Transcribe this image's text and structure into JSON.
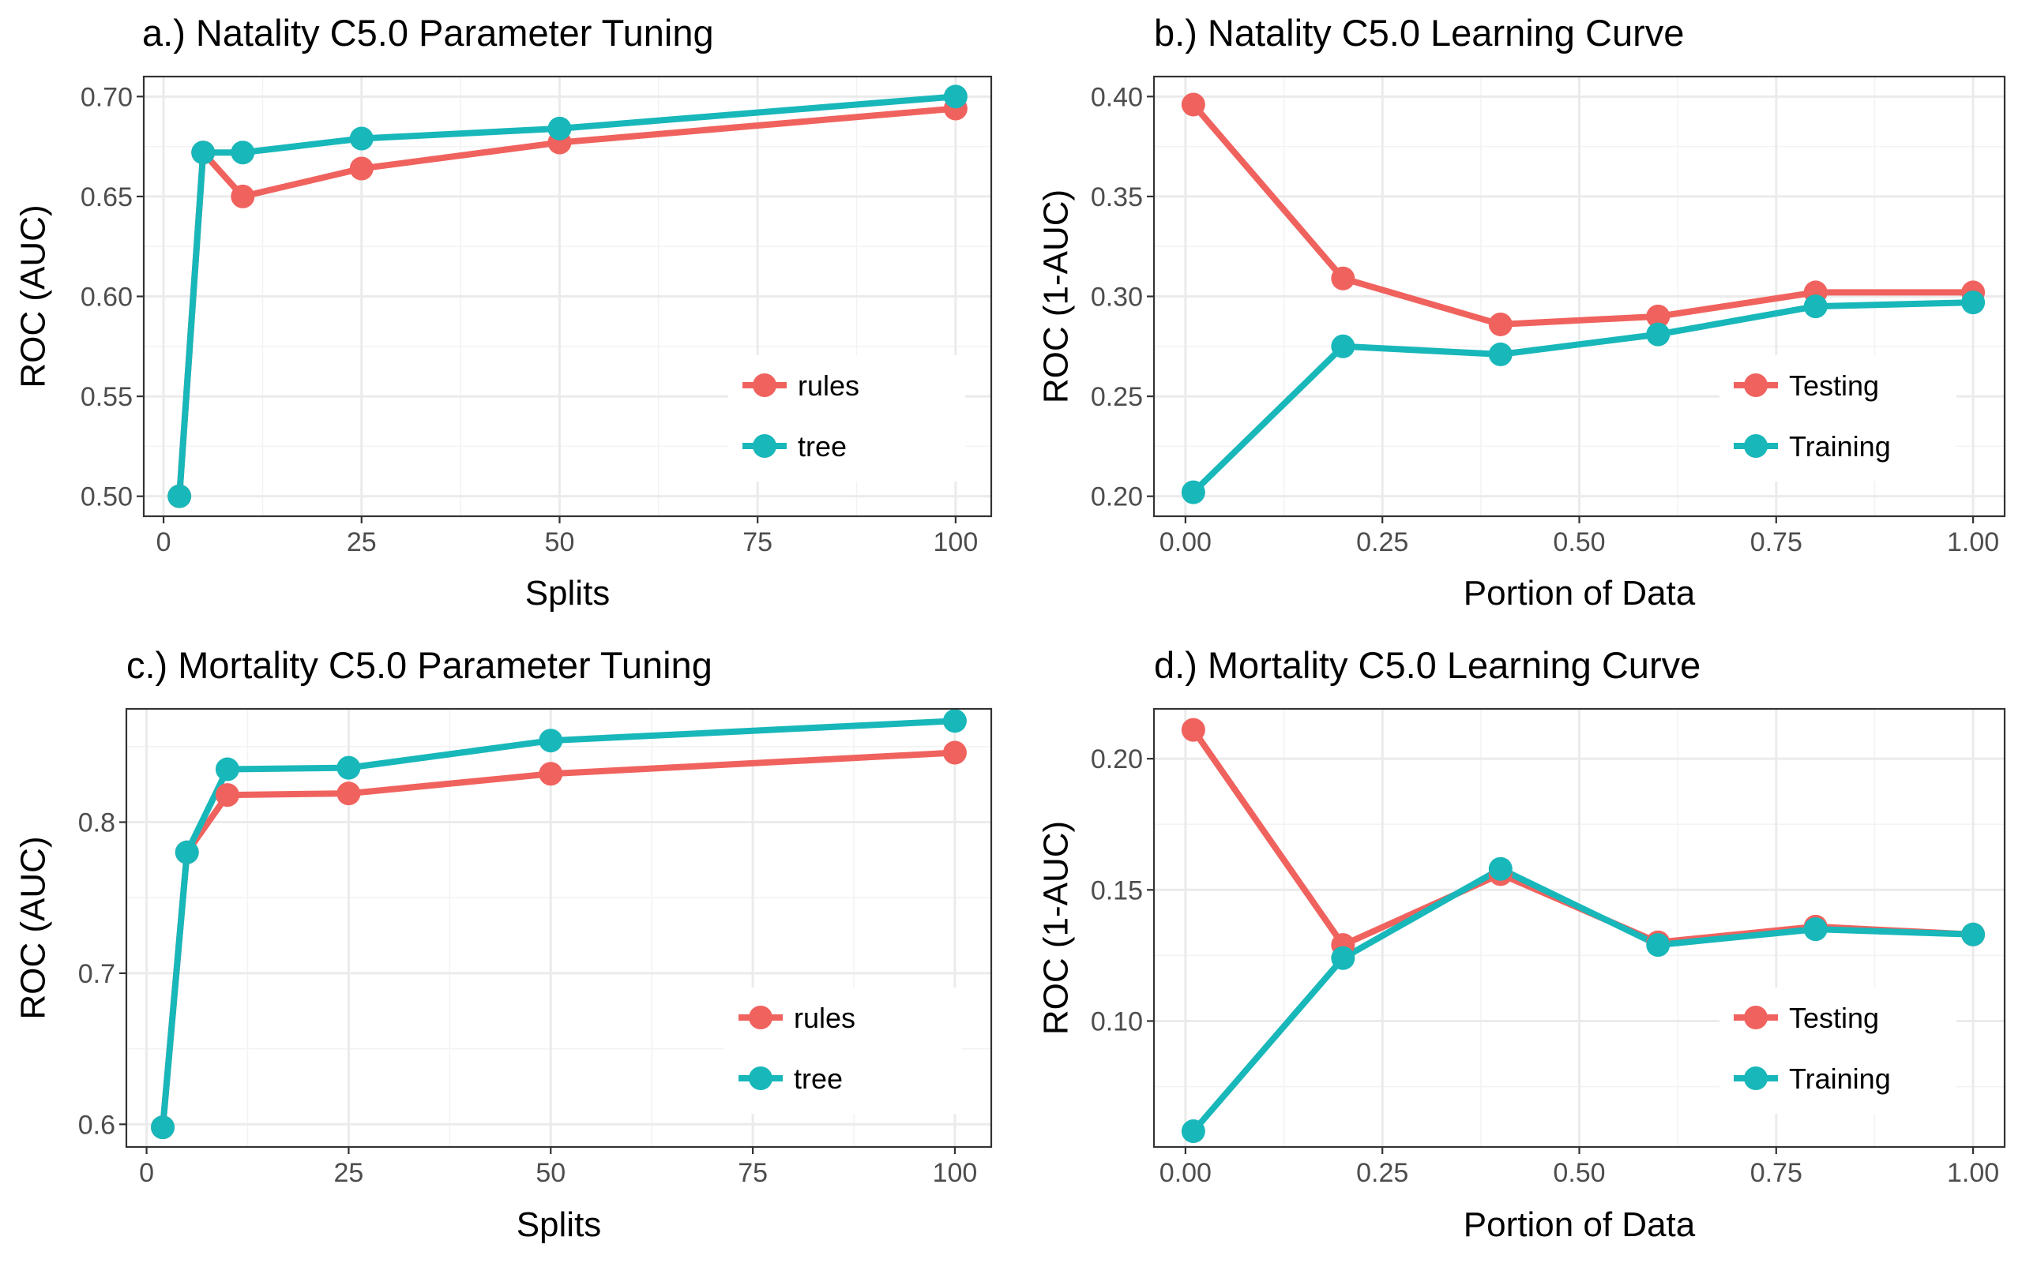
{
  "chart_data": [
    {
      "type": "line",
      "title": "a.) Natality C5.0 Parameter Tuning",
      "xlabel": "Splits",
      "ylabel": "ROC (AUC)",
      "xlim": [
        -2.5,
        104.5
      ],
      "ylim": [
        0.49,
        0.71
      ],
      "xticks": [
        0,
        25,
        50,
        75,
        100
      ],
      "xtick_labels": [
        "0",
        "25",
        "50",
        "75",
        "100"
      ],
      "yticks": [
        0.5,
        0.55,
        0.6,
        0.65,
        0.7
      ],
      "ytick_labels": [
        "0.50",
        "0.55",
        "0.60",
        "0.65",
        "0.70"
      ],
      "grid": true,
      "legend_position": "bottom-right",
      "series": [
        {
          "name": "rules",
          "color": "#F0625E",
          "x": [
            2,
            5,
            10,
            25,
            50,
            100
          ],
          "y": [
            0.5,
            0.672,
            0.65,
            0.664,
            0.677,
            0.694
          ]
        },
        {
          "name": "tree",
          "color": "#18B7BA",
          "x": [
            2,
            5,
            10,
            25,
            50,
            100
          ],
          "y": [
            0.5,
            0.672,
            0.672,
            0.679,
            0.684,
            0.7
          ]
        }
      ]
    },
    {
      "type": "line",
      "title": "b.) Natality C5.0 Learning Curve",
      "xlabel": "Portion of Data",
      "ylabel": "ROC (1-AUC)",
      "xlim": [
        -0.04,
        1.04
      ],
      "ylim": [
        0.19,
        0.41
      ],
      "xticks": [
        0.0,
        0.25,
        0.5,
        0.75,
        1.0
      ],
      "xtick_labels": [
        "0.00",
        "0.25",
        "0.50",
        "0.75",
        "1.00"
      ],
      "yticks": [
        0.2,
        0.25,
        0.3,
        0.35,
        0.4
      ],
      "ytick_labels": [
        "0.20",
        "0.25",
        "0.30",
        "0.35",
        "0.40"
      ],
      "grid": true,
      "legend_position": "bottom-right",
      "series": [
        {
          "name": "Testing",
          "color": "#F0625E",
          "x": [
            0.01,
            0.2,
            0.4,
            0.6,
            0.8,
            1.0
          ],
          "y": [
            0.396,
            0.309,
            0.286,
            0.29,
            0.302,
            0.302
          ]
        },
        {
          "name": "Training",
          "color": "#18B7BA",
          "x": [
            0.01,
            0.2,
            0.4,
            0.6,
            0.8,
            1.0
          ],
          "y": [
            0.202,
            0.275,
            0.271,
            0.281,
            0.295,
            0.297
          ]
        }
      ]
    },
    {
      "type": "line",
      "title": "c.) Mortality C5.0 Parameter Tuning",
      "xlabel": "Splits",
      "ylabel": "ROC (AUC)",
      "xlim": [
        -2.5,
        104.5
      ],
      "ylim": [
        0.585,
        0.875
      ],
      "xticks": [
        0,
        25,
        50,
        75,
        100
      ],
      "xtick_labels": [
        "0",
        "25",
        "50",
        "75",
        "100"
      ],
      "yticks": [
        0.6,
        0.7,
        0.8
      ],
      "ytick_labels": [
        "0.6",
        "0.7",
        "0.8"
      ],
      "grid": true,
      "legend_position": "bottom-right",
      "series": [
        {
          "name": "rules",
          "color": "#F0625E",
          "x": [
            2,
            5,
            10,
            25,
            50,
            100
          ],
          "y": [
            0.598,
            0.78,
            0.818,
            0.819,
            0.832,
            0.846
          ]
        },
        {
          "name": "tree",
          "color": "#18B7BA",
          "x": [
            2,
            5,
            10,
            25,
            50,
            100
          ],
          "y": [
            0.598,
            0.78,
            0.835,
            0.836,
            0.854,
            0.867
          ]
        }
      ]
    },
    {
      "type": "line",
      "title": "d.) Mortality C5.0 Learning Curve",
      "xlabel": "Portion of Data",
      "ylabel": "ROC (1-AUC)",
      "xlim": [
        -0.04,
        1.04
      ],
      "ylim": [
        0.052,
        0.219
      ],
      "xticks": [
        0.0,
        0.25,
        0.5,
        0.75,
        1.0
      ],
      "xtick_labels": [
        "0.00",
        "0.25",
        "0.50",
        "0.75",
        "1.00"
      ],
      "yticks": [
        0.1,
        0.15,
        0.2
      ],
      "ytick_labels": [
        "0.10",
        "0.15",
        "0.20"
      ],
      "grid": true,
      "legend_position": "bottom-right",
      "series": [
        {
          "name": "Testing",
          "color": "#F0625E",
          "x": [
            0.01,
            0.2,
            0.4,
            0.6,
            0.8,
            1.0
          ],
          "y": [
            0.211,
            0.129,
            0.156,
            0.13,
            0.136,
            0.133
          ]
        },
        {
          "name": "Training",
          "color": "#18B7BA",
          "x": [
            0.01,
            0.2,
            0.4,
            0.6,
            0.8,
            1.0
          ],
          "y": [
            0.058,
            0.124,
            0.158,
            0.129,
            0.135,
            0.133
          ]
        }
      ]
    }
  ]
}
